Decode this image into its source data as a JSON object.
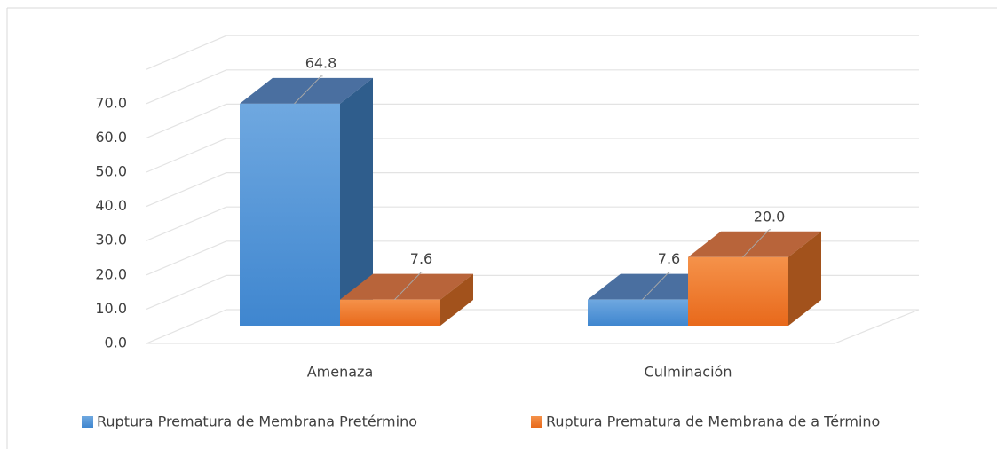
{
  "chart_data": {
    "type": "bar3d",
    "categories": [
      "Amenaza",
      "Culminación"
    ],
    "series": [
      {
        "name": "Ruptura Prematura de Membrana Pretérmino",
        "color": "#5b9bd5",
        "values": [
          64.8,
          7.6
        ],
        "value_labels": [
          "64.8",
          "7.6"
        ]
      },
      {
        "name": "Ruptura Prematura de Membrana de a Término",
        "color": "#ed7d31",
        "values": [
          7.6,
          20.0
        ],
        "value_labels": [
          "7.6",
          "20.0"
        ]
      }
    ],
    "ylim": [
      0,
      80
    ],
    "yticks": [
      {
        "value": 0,
        "label": "0.0"
      },
      {
        "value": 10,
        "label": "10.0"
      },
      {
        "value": 20,
        "label": "20.0"
      },
      {
        "value": 30,
        "label": "30.0"
      },
      {
        "value": 40,
        "label": "40.0"
      },
      {
        "value": 50,
        "label": "50.0"
      },
      {
        "value": 60,
        "label": "60.0"
      },
      {
        "value": 70,
        "label": "70.0"
      }
    ],
    "grid": true,
    "legend": "bottom"
  }
}
